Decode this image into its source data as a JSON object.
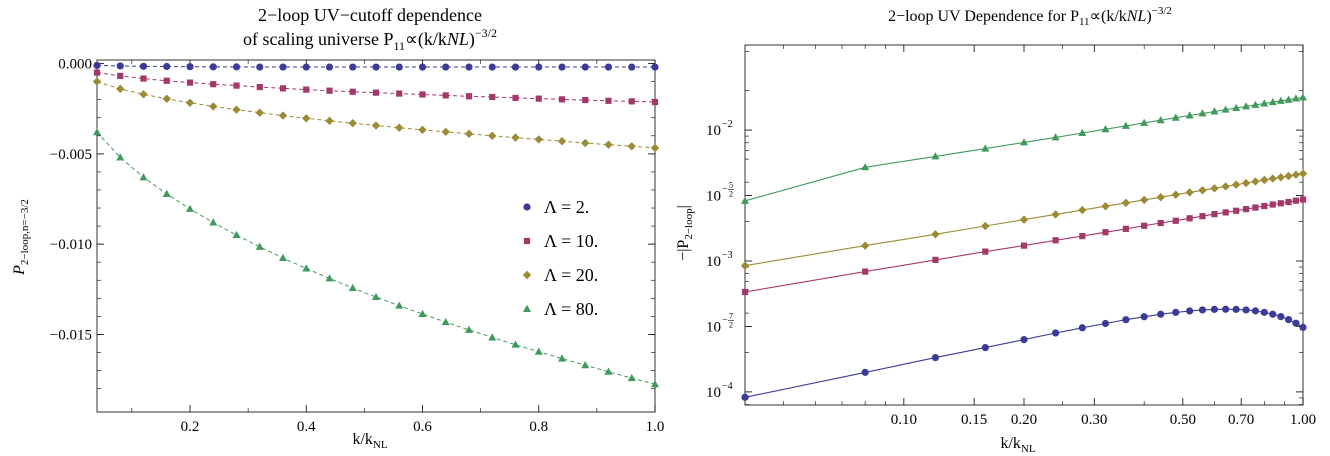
{
  "chart_data": [
    {
      "type": "scatter",
      "title": "2−loop UV−cutoff dependence",
      "subtitle_prefix": "of scaling universe P",
      "subtitle_sub": "11",
      "subtitle_mid": "∝(k/k",
      "subtitle_sub2": "NL",
      "subtitle_end": ")",
      "subtitle_sup": "−3/2",
      "xlabel_main": "k/k",
      "xlabel_sub": "NL",
      "ylabel_main": "P",
      "ylabel_sub": "2−loop,n=−3/2",
      "xlim": [
        0.04,
        1.0
      ],
      "ylim": [
        -0.0193,
        0.0002
      ],
      "xticks": [
        0.2,
        0.4,
        0.6,
        0.8,
        1.0
      ],
      "xtick_labels": [
        "0.2",
        "0.4",
        "0.6",
        "0.8",
        "1.0"
      ],
      "yticks": [
        0.0,
        -0.005,
        -0.01,
        -0.015
      ],
      "ytick_labels": [
        "0.000",
        "−0.005",
        "−0.010",
        "−0.015"
      ],
      "grid": false,
      "legend_position": "right",
      "x": [
        0.04,
        0.08,
        0.12,
        0.16,
        0.2,
        0.24,
        0.28,
        0.32,
        0.36,
        0.4,
        0.44,
        0.48,
        0.52,
        0.56,
        0.6,
        0.64,
        0.68,
        0.72,
        0.76,
        0.8,
        0.84,
        0.88,
        0.92,
        0.96,
        1.0
      ],
      "series": [
        {
          "name": "Λ = 2.",
          "marker": "circle",
          "color": "#3b3b98",
          "values": [
            -0.0001,
            -0.00013,
            -0.00015,
            -0.00016,
            -0.00017,
            -0.00018,
            -0.00018,
            -0.00019,
            -0.00019,
            -0.00019,
            -0.00019,
            -0.00019,
            -0.00019,
            -0.00019,
            -0.00019,
            -0.00019,
            -0.00019,
            -0.00019,
            -0.00019,
            -0.00019,
            -0.00019,
            -0.00019,
            -0.00019,
            -0.00019,
            -0.00019
          ]
        },
        {
          "name": "Λ = 10.",
          "marker": "square",
          "color": "#a3396b",
          "values": [
            -0.0005,
            -0.00068,
            -0.00083,
            -0.00095,
            -0.00105,
            -0.00114,
            -0.00122,
            -0.0013,
            -0.00137,
            -0.00144,
            -0.0015,
            -0.00156,
            -0.00161,
            -0.00166,
            -0.00171,
            -0.00176,
            -0.00181,
            -0.00185,
            -0.0019,
            -0.00194,
            -0.00198,
            -0.00202,
            -0.00206,
            -0.00209,
            -0.00213
          ]
        },
        {
          "name": "Λ = 20.",
          "marker": "diamond",
          "color": "#9c8a35",
          "values": [
            -0.001,
            -0.0014,
            -0.0017,
            -0.00195,
            -0.00217,
            -0.00237,
            -0.00255,
            -0.00272,
            -0.00288,
            -0.00303,
            -0.00317,
            -0.0033,
            -0.00343,
            -0.00355,
            -0.00367,
            -0.00378,
            -0.00389,
            -0.004,
            -0.0041,
            -0.0042,
            -0.0043,
            -0.0044,
            -0.00449,
            -0.00458,
            -0.00467
          ]
        },
        {
          "name": "Λ = 80.",
          "marker": "triangle",
          "color": "#3f9a5c",
          "values": [
            -0.0038,
            -0.0052,
            -0.0063,
            -0.00722,
            -0.00805,
            -0.0088,
            -0.0095,
            -0.01015,
            -0.01077,
            -0.01135,
            -0.0119,
            -0.01243,
            -0.01293,
            -0.01341,
            -0.01387,
            -0.01432,
            -0.01475,
            -0.01517,
            -0.01557,
            -0.01596,
            -0.01634,
            -0.01671,
            -0.01707,
            -0.01742,
            -0.01776
          ]
        }
      ]
    },
    {
      "type": "line",
      "title_prefix": "2−loop UV Dependence for P",
      "title_sub": "11",
      "title_mid": "∝(k/k",
      "title_sub2": "NL",
      "title_end": ")",
      "title_sup": "−3/2",
      "xlabel_main": "k/k",
      "xlabel_sub": "NL",
      "ylabel_main": "−|P",
      "ylabel_sub": "2−loop",
      "ylabel_end": "|",
      "xscale": "log",
      "yscale": "log",
      "xlim": [
        0.04,
        1.0
      ],
      "ylim_log10": [
        -4.1,
        -1.35
      ],
      "xticks": [
        0.1,
        0.15,
        0.2,
        0.3,
        0.5,
        0.7,
        1.0
      ],
      "xtick_labels": [
        "0.10",
        "0.15",
        "0.20",
        "0.30",
        "0.50",
        "0.70",
        "1.00"
      ],
      "yticks_log10": [
        -4,
        -3.5,
        -3,
        -2.5,
        -2
      ],
      "ytick_labels": [
        {
          "base": "10",
          "exp": "−4",
          "frac": false
        },
        {
          "base": "10",
          "exp_num": "7",
          "exp_den": "2",
          "frac": true
        },
        {
          "base": "10",
          "exp": "−3",
          "frac": false
        },
        {
          "base": "10",
          "exp_num": "5",
          "exp_den": "2",
          "frac": true
        },
        {
          "base": "10",
          "exp": "−2",
          "frac": false
        }
      ],
      "grid": false,
      "x": [
        0.04,
        0.08,
        0.12,
        0.16,
        0.2,
        0.24,
        0.28,
        0.32,
        0.36,
        0.4,
        0.44,
        0.48,
        0.52,
        0.56,
        0.6,
        0.64,
        0.68,
        0.72,
        0.76,
        0.8,
        0.84,
        0.88,
        0.92,
        0.96,
        1.0
      ],
      "series": [
        {
          "marker": "circle",
          "color": "#3b3b98",
          "values": [
            9.1e-05,
            0.000141,
            0.000183,
            0.000218,
            0.000251,
            0.000282,
            0.000309,
            0.000333,
            0.000356,
            0.000375,
            0.000392,
            0.000405,
            0.000415,
            0.000423,
            0.000427,
            0.000428,
            0.000427,
            0.000423,
            0.000416,
            0.000405,
            0.000392,
            0.000376,
            0.000357,
            0.000335,
            0.000311
          ]
        },
        {
          "marker": "square",
          "color": "#a3396b",
          "values": [
            0.00058,
            0.00083,
            0.00102,
            0.00118,
            0.00131,
            0.00144,
            0.00155,
            0.00166,
            0.00176,
            0.00186,
            0.00195,
            0.00203,
            0.00212,
            0.0022,
            0.00228,
            0.00235,
            0.00242,
            0.00249,
            0.00256,
            0.00263,
            0.0027,
            0.00276,
            0.00282,
            0.00289,
            0.00295
          ]
        },
        {
          "marker": "diamond",
          "color": "#9c8a35",
          "values": [
            0.00092,
            0.00131,
            0.0016,
            0.00185,
            0.00207,
            0.00227,
            0.00245,
            0.00262,
            0.00278,
            0.00293,
            0.00307,
            0.00321,
            0.00334,
            0.00347,
            0.00359,
            0.00371,
            0.00383,
            0.00394,
            0.00405,
            0.00416,
            0.00426,
            0.00436,
            0.00446,
            0.00456,
            0.00465
          ]
        },
        {
          "marker": "triangle",
          "color": "#3f9a5c",
          "values": [
            0.00288,
            0.0052,
            0.0063,
            0.00722,
            0.00805,
            0.0088,
            0.0095,
            0.01015,
            0.01077,
            0.01135,
            0.0119,
            0.01243,
            0.01293,
            0.01341,
            0.01387,
            0.01432,
            0.01475,
            0.01517,
            0.01557,
            0.01596,
            0.01634,
            0.01671,
            0.01707,
            0.01742,
            0.01776
          ]
        }
      ]
    }
  ]
}
